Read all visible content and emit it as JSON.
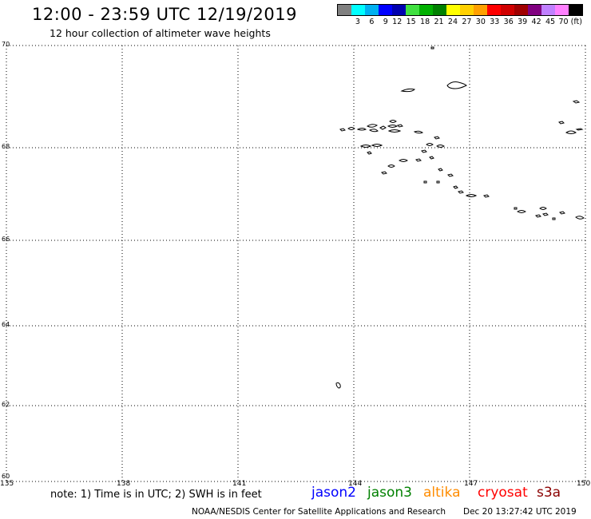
{
  "header": {
    "title": "12:00 - 23:59 UTC 12/19/2019",
    "subtitle": "12 hour collection of altimeter wave heights"
  },
  "legend": {
    "colors": [
      "#808080",
      "#00ffff",
      "#00b0f0",
      "#0000ff",
      "#0000b0",
      "#40e040",
      "#00b000",
      "#008000",
      "#ffff00",
      "#ffd000",
      "#ffa000",
      "#ff0000",
      "#d00000",
      "#a00000",
      "#800080",
      "#c080ff",
      "#ff80ff",
      "#000000"
    ],
    "labels": [
      "3",
      "6",
      "9",
      "12",
      "15",
      "18",
      "21",
      "24",
      "27",
      "30",
      "33",
      "36",
      "39",
      "42",
      "45",
      "70 (ft)"
    ]
  },
  "axes": {
    "latitudes": [
      "70",
      "68",
      "66",
      "64",
      "62",
      "60"
    ],
    "longitudes": [
      "135",
      "138",
      "141",
      "144",
      "147",
      "150"
    ]
  },
  "footer": {
    "note": "note: 1) Time is in UTC; 2) SWH is in feet",
    "satellites": [
      {
        "name": "jason2",
        "color": "#0000ff"
      },
      {
        "name": "jason3",
        "color": "#008000"
      },
      {
        "name": "altika",
        "color": "#ff8c00"
      },
      {
        "name": "cryosat",
        "color": "#ff0000"
      },
      {
        "name": "s3a",
        "color": "#8b0000"
      }
    ],
    "credit": "NOAA/NESDIS Center for Satellite Applications and Research",
    "timestamp": "Dec 20 13:27:42 UTC 2019"
  }
}
